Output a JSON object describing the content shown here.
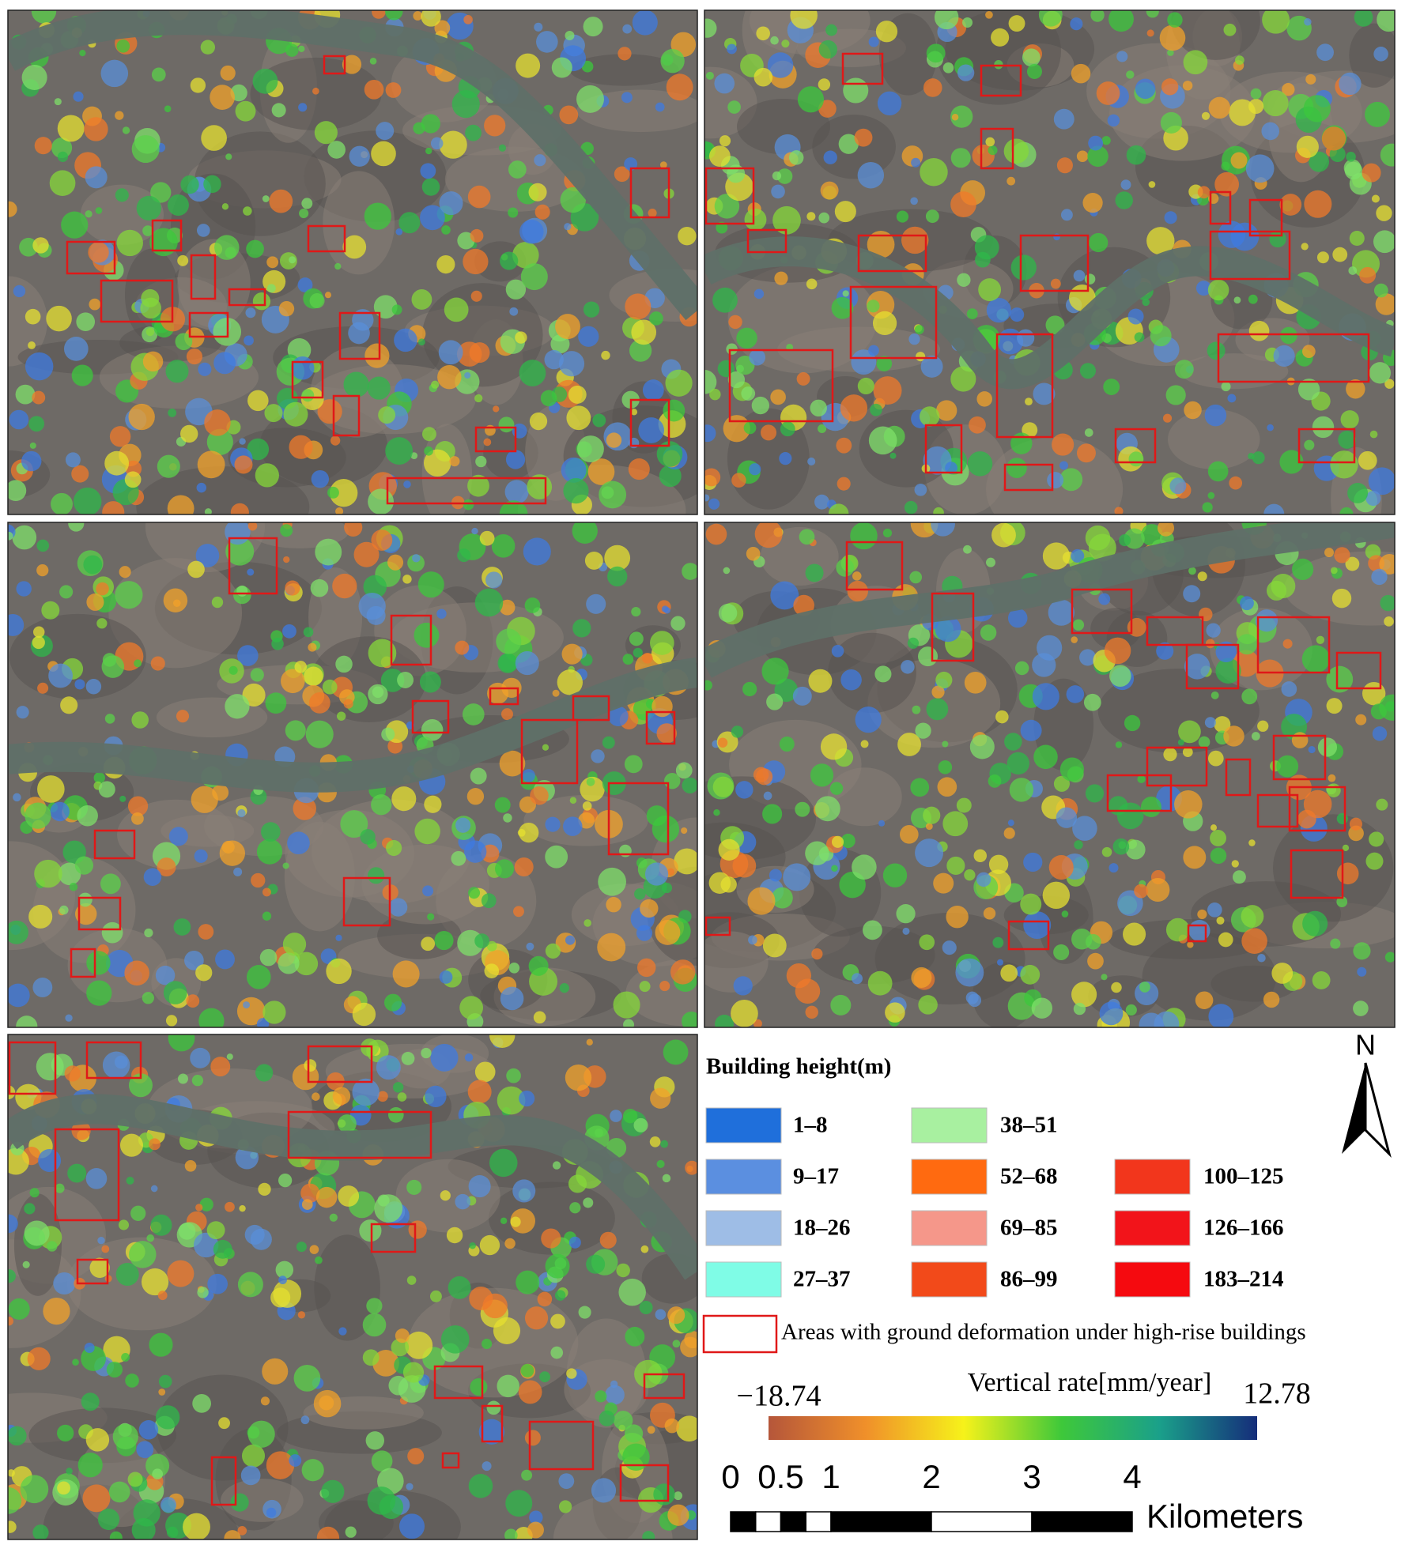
{
  "legend": {
    "title": "Building height(m)",
    "classes": [
      {
        "label": "1–8",
        "color": "#1f6fdb"
      },
      {
        "label": "9–17",
        "color": "#5b8fe0"
      },
      {
        "label": "18–26",
        "color": "#9ebde6"
      },
      {
        "label": "27–37",
        "color": "#7ffce6"
      },
      {
        "label": "38–51",
        "color": "#a8f0a0"
      },
      {
        "label": "52–68",
        "color": "#ff6a10"
      },
      {
        "label": "69–85",
        "color": "#f5978a"
      },
      {
        "label": "86–99",
        "color": "#f24a1a"
      },
      {
        "label": "100–125",
        "color": "#f2361c"
      },
      {
        "label": "126–166",
        "color": "#f2141a"
      },
      {
        "label": "183–214",
        "color": "#f50a0f"
      }
    ],
    "deformation_label": "Areas with ground deformation under high-rise buildings"
  },
  "colorbar": {
    "title": "Vertical rate[mm/year]",
    "min_label": "−18.74",
    "max_label": "12.78"
  },
  "scale_bar": {
    "ticks": [
      0,
      0.5,
      1,
      2,
      3,
      4
    ],
    "unit": "Kilometers"
  },
  "north": "N"
}
